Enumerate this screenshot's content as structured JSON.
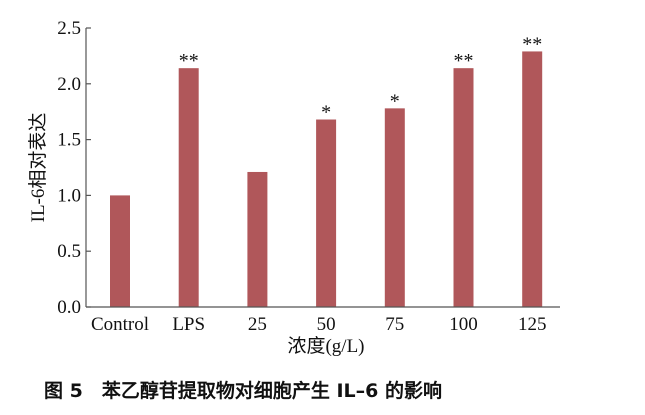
{
  "chart_data": {
    "type": "bar",
    "title": "",
    "xlabel": "浓度(g/L)",
    "ylabel": "IL-6相对表达",
    "ylim": [
      0,
      2.5
    ],
    "yticks": [
      "0.0",
      "0.5",
      "1.0",
      "1.5",
      "2.0",
      "2.5"
    ],
    "grid": false,
    "bar_color": "#b0575a",
    "categories": [
      "Control",
      "LPS",
      "25",
      "50",
      "75",
      "100",
      "125"
    ],
    "values": [
      1.0,
      2.14,
      1.21,
      1.68,
      1.78,
      2.14,
      2.29
    ],
    "significance": [
      "",
      "**",
      "",
      "*",
      "*",
      "**",
      "**"
    ]
  },
  "caption": "图 5　苯乙醇苷提取物对细胞产生 IL–6 的影响"
}
